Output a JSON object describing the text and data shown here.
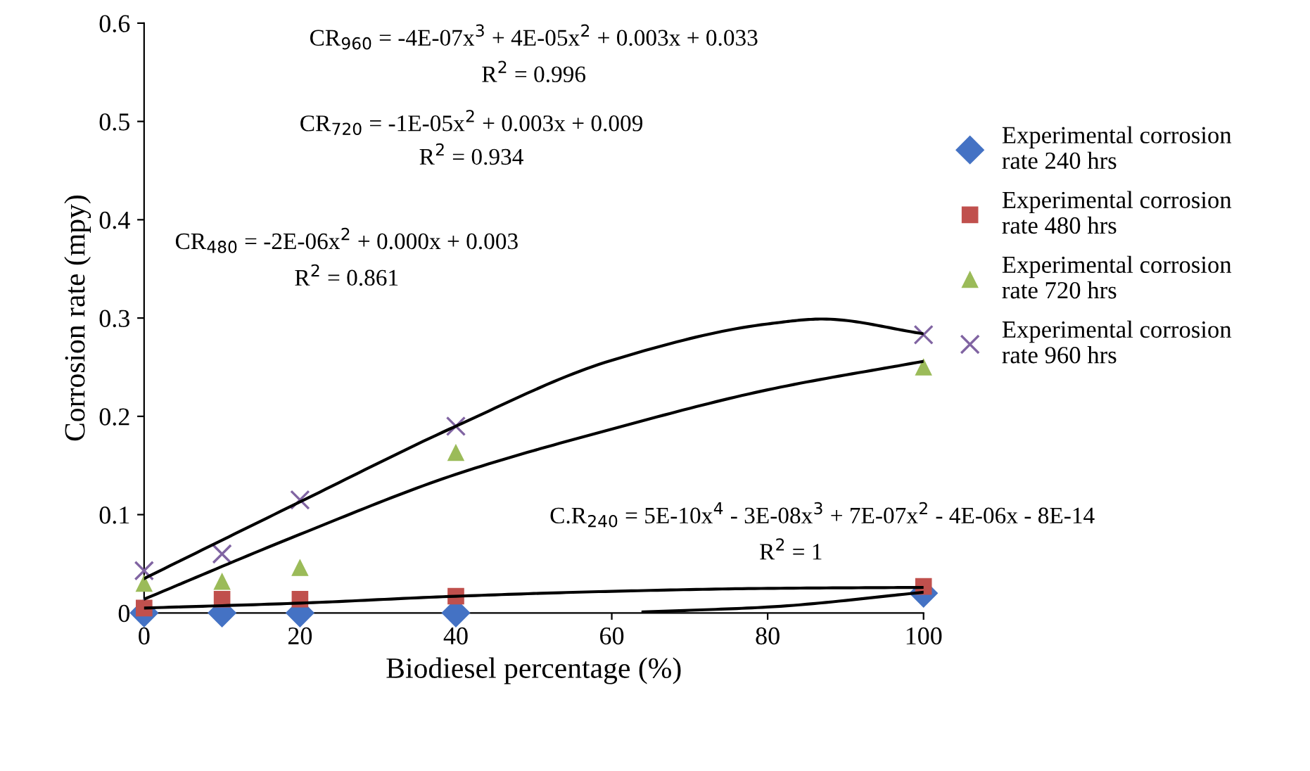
{
  "chart_data": {
    "type": "scatter",
    "xlabel": "Biodiesel percentage (%)",
    "ylabel": "Corrosion rate (mpy)",
    "xlim": [
      0,
      100
    ],
    "ylim": [
      0,
      0.6
    ],
    "xticks": [
      0,
      20,
      40,
      60,
      80,
      100
    ],
    "yticks": [
      0,
      0.1,
      0.2,
      0.3,
      0.4,
      0.5,
      0.6
    ],
    "grid": false,
    "legend": "right",
    "series": [
      {
        "name": "Experimental corrosion rate 240 hrs",
        "color": "#4472c4",
        "marker": "diamond",
        "x": [
          0,
          10,
          20,
          40,
          100
        ],
        "values": [
          0,
          0,
          0,
          0,
          0.02
        ]
      },
      {
        "name": "Experimental corrosion rate 480 hrs",
        "color": "#c0504d",
        "marker": "square",
        "x": [
          0,
          10,
          20,
          40,
          100
        ],
        "values": [
          0.005,
          0.014,
          0.014,
          0.017,
          0.027
        ]
      },
      {
        "name": "Experimental corrosion rate 720 hrs",
        "color": "#9bbb59",
        "marker": "triangle",
        "x": [
          0,
          10,
          20,
          40,
          100
        ],
        "values": [
          0.03,
          0.032,
          0.046,
          0.163,
          0.25
        ]
      },
      {
        "name": "Experimental corrosion rate 960 hrs",
        "color": "#8064a2",
        "marker": "cross",
        "x": [
          0,
          10,
          20,
          40,
          100
        ],
        "values": [
          0.043,
          0.06,
          0.115,
          0.19,
          0.283
        ]
      },
      {
        "type": "line",
        "color": "#000000",
        "marker": "none",
        "x": [
          64,
          80,
          100
        ],
        "values": [
          0.001,
          0.006,
          0.021
        ]
      },
      {
        "type": "line",
        "color": "#000000",
        "marker": "none",
        "x": [
          0,
          20,
          40,
          60,
          80,
          100
        ],
        "values": [
          0.005,
          0.01,
          0.017,
          0.022,
          0.025,
          0.026
        ]
      },
      {
        "type": "line",
        "color": "#000000",
        "marker": "none",
        "x": [
          0,
          20,
          40,
          60,
          80,
          100
        ],
        "values": [
          0.014,
          0.08,
          0.141,
          0.187,
          0.227,
          0.256
        ]
      },
      {
        "type": "line",
        "color": "#000000",
        "marker": "none",
        "x": [
          0,
          20,
          40,
          60,
          80,
          87,
          100
        ],
        "values": [
          0.035,
          0.113,
          0.19,
          0.257,
          0.294,
          0.299,
          0.284
        ]
      }
    ],
    "annotations": [
      "CR$_{960}$ = -4E-07x$^{3}$ + 4E-05x$^{2}$ + 0.003x + 0.033",
      "R$^{2}$ = 0.996",
      "CR$_{720}$ = -1E-05x$^{2}$ + 0.003x + 0.009",
      "R$^{2}$ = 0.934",
      "CR$_{480}$ = -2E-06x$^{2}$ + 0.000x + 0.003",
      "R$^{2}$ = 0.861",
      "C.R$_{240}$ = 5E-10x$^{4}$ - 3E-08x$^{3}$ + 7E-07x$^{2}$ - 4E-06x - 8E-14",
      "R$^{2}$ = 1"
    ]
  }
}
